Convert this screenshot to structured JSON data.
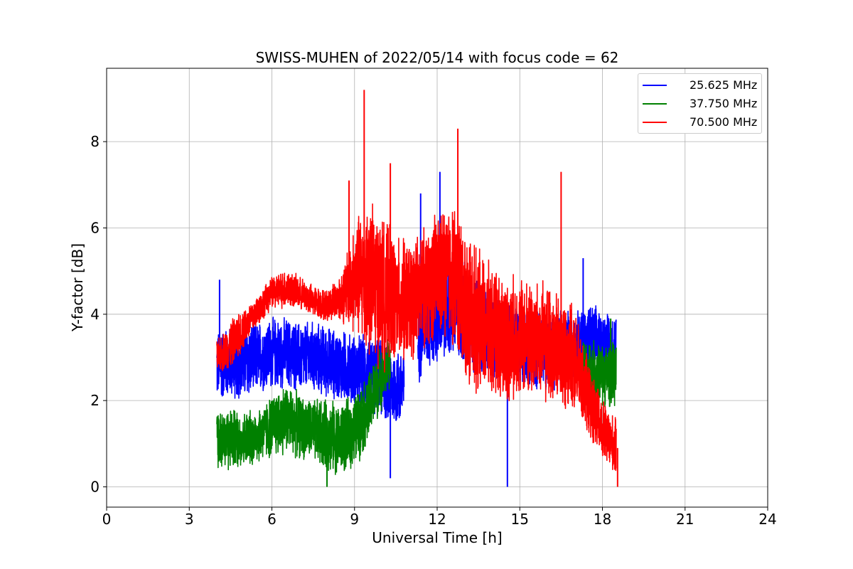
{
  "chart_data": {
    "type": "line",
    "title": "SWISS-MUHEN of 2022/05/14 with focus code = 62",
    "xlabel": "Universal Time [h]",
    "ylabel": "Y-factor [dB]",
    "xlim": [
      0,
      24
    ],
    "ylim": [
      -0.47,
      9.7
    ],
    "xticks": [
      0,
      3,
      6,
      9,
      12,
      15,
      18,
      21,
      24
    ],
    "yticks": [
      0,
      2,
      4,
      6,
      8
    ],
    "grid": true,
    "legend_position": "top-right",
    "series": [
      {
        "name": "25.625 MHz",
        "color": "#0000ff",
        "x": [
          4.0,
          4.5,
          5.0,
          5.5,
          6.0,
          6.5,
          7.0,
          7.5,
          8.0,
          8.5,
          9.0,
          9.5,
          10.0,
          10.3,
          10.8,
          11.5,
          12.0,
          12.5,
          13.0,
          13.5,
          14.0,
          14.5,
          15.0,
          15.5,
          16.0,
          16.5,
          17.0,
          17.5,
          18.0,
          18.5
        ],
        "center": [
          2.8,
          2.9,
          2.9,
          3.0,
          3.1,
          3.1,
          3.0,
          3.0,
          2.9,
          2.8,
          2.7,
          2.6,
          2.5,
          2.3,
          2.3,
          3.8,
          4.1,
          4.2,
          4.0,
          3.7,
          3.5,
          3.4,
          3.3,
          3.2,
          3.2,
          3.2,
          3.3,
          3.4,
          3.3,
          3.2
        ],
        "amplitude": [
          0.9,
          0.9,
          1.0,
          0.9,
          0.9,
          0.9,
          0.9,
          0.9,
          0.9,
          0.9,
          0.9,
          1.0,
          1.0,
          1.0,
          1.0,
          1.2,
          1.4,
          1.4,
          1.3,
          1.2,
          1.1,
          1.1,
          1.0,
          1.0,
          1.0,
          1.0,
          0.9,
          0.9,
          0.9,
          0.9
        ],
        "peaks": [
          [
            4.1,
            4.8
          ],
          [
            10.3,
            0.2
          ],
          [
            11.4,
            6.8
          ],
          [
            12.1,
            7.3
          ],
          [
            14.55,
            0.0
          ],
          [
            17.3,
            5.3
          ]
        ]
      },
      {
        "name": "37.750 MHz",
        "color": "#008000",
        "x": [
          4.0,
          4.5,
          5.0,
          5.5,
          6.0,
          6.5,
          7.0,
          7.5,
          8.0,
          8.5,
          9.0,
          9.5,
          10.0,
          10.3,
          17.2,
          17.5,
          18.0,
          18.5
        ],
        "center": [
          1.2,
          1.1,
          1.1,
          1.2,
          1.4,
          1.6,
          1.4,
          1.3,
          1.2,
          1.1,
          1.3,
          1.8,
          2.6,
          2.9,
          2.6,
          2.7,
          2.6,
          2.6
        ],
        "amplitude": [
          0.8,
          0.8,
          0.7,
          0.7,
          0.8,
          0.9,
          0.8,
          0.8,
          0.9,
          0.9,
          0.9,
          0.9,
          0.8,
          0.7,
          0.8,
          0.8,
          0.8,
          0.8
        ],
        "peaks": [
          [
            8.0,
            0.0
          ],
          [
            10.0,
            3.6
          ],
          [
            18.3,
            3.9
          ]
        ]
      },
      {
        "name": "70.500 MHz",
        "color": "#ff0000",
        "x": [
          4.0,
          4.5,
          5.0,
          5.5,
          6.0,
          6.5,
          7.0,
          7.5,
          8.0,
          8.5,
          9.0,
          9.5,
          10.0,
          10.5,
          11.0,
          11.5,
          12.0,
          12.5,
          13.0,
          13.5,
          14.0,
          14.5,
          15.0,
          15.5,
          16.0,
          16.5,
          17.0,
          17.5,
          18.0,
          18.5
        ],
        "center": [
          3.0,
          3.3,
          3.7,
          4.1,
          4.5,
          4.6,
          4.5,
          4.3,
          4.2,
          4.4,
          4.8,
          4.9,
          4.5,
          4.3,
          4.3,
          4.6,
          4.9,
          5.0,
          4.3,
          3.8,
          3.6,
          3.4,
          3.5,
          3.4,
          3.3,
          3.1,
          2.9,
          2.0,
          1.3,
          0.9
        ],
        "amplitude": [
          0.4,
          0.6,
          0.5,
          0.4,
          0.4,
          0.5,
          0.4,
          0.4,
          0.4,
          0.6,
          1.4,
          2.0,
          1.9,
          1.6,
          1.5,
          1.5,
          1.6,
          1.8,
          1.9,
          1.8,
          1.6,
          1.6,
          1.5,
          1.5,
          1.5,
          1.4,
          1.3,
          0.9,
          0.8,
          0.7
        ],
        "peaks": [
          [
            9.35,
            9.2
          ],
          [
            12.75,
            8.3
          ],
          [
            16.5,
            7.3
          ],
          [
            8.8,
            7.1
          ],
          [
            10.3,
            7.5
          ],
          [
            18.55,
            0.0
          ]
        ]
      }
    ]
  }
}
